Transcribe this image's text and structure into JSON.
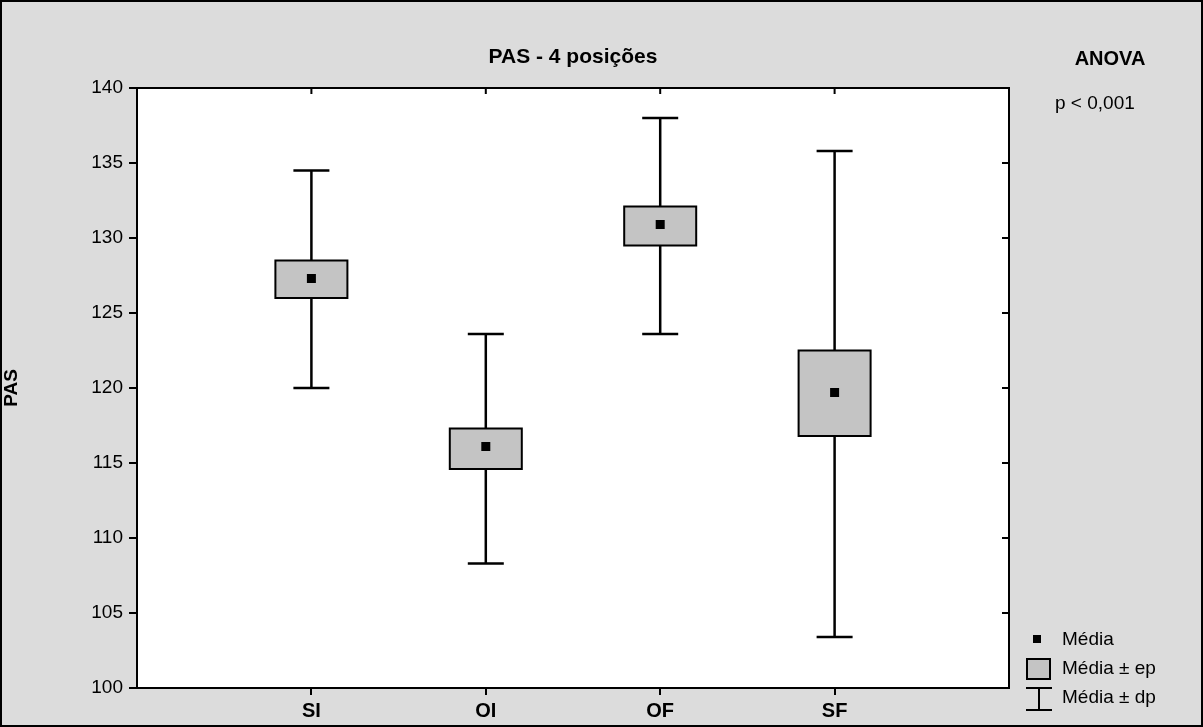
{
  "chart_data": {
    "type": "box",
    "title": "PAS - 4 posições",
    "ylabel": "PAS",
    "categories": [
      "SI",
      "OI",
      "OF",
      "SF"
    ],
    "boxes": [
      {
        "low": 120.0,
        "q1": 126.0,
        "median": 127.3,
        "q3": 128.5,
        "high": 134.5
      },
      {
        "low": 108.3,
        "q1": 114.6,
        "median": 116.1,
        "q3": 117.3,
        "high": 123.6
      },
      {
        "low": 123.6,
        "q1": 129.5,
        "median": 130.9,
        "q3": 132.1,
        "high": 138.0
      },
      {
        "low": 103.4,
        "q1": 116.8,
        "median": 119.7,
        "q3": 122.5,
        "high": 135.8
      }
    ],
    "color": "#c4c4c4",
    "ylim": [
      100,
      140
    ],
    "yticks": [
      100,
      105,
      110,
      115,
      120,
      125,
      130,
      135,
      140
    ],
    "grid": false,
    "marker": "square",
    "annotations": [
      "ANOVA",
      "p < 0,001",
      "Média",
      "Média ± ep",
      "Média ± dp"
    ]
  }
}
